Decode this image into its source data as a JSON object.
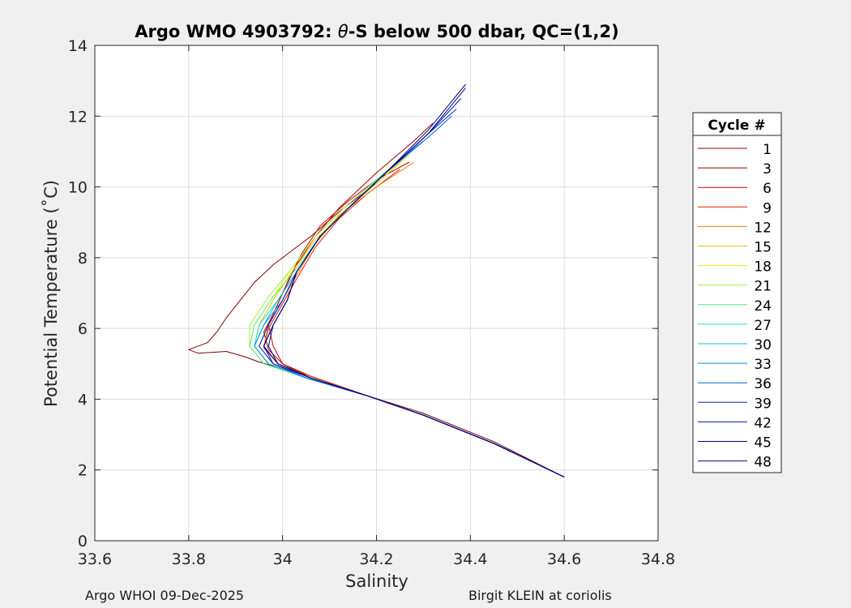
{
  "chart_data": {
    "type": "line",
    "title": {
      "prefix": "Argo WMO 4903792: ",
      "symbol": "θ",
      "suffix": "-S below 500 dbar,  QC=(1,2)"
    },
    "xlabel": "Salinity",
    "ylabel": "Potential Temperature (˚C)",
    "xlim": [
      33.6,
      34.8
    ],
    "ylim": [
      0,
      14
    ],
    "xticks": [
      33.6,
      33.8,
      34,
      34.2,
      34.4,
      34.6,
      34.8
    ],
    "xtick_labels": [
      "33.6",
      "33.8",
      "34",
      "34.2",
      "34.4",
      "34.6",
      "34.8"
    ],
    "yticks": [
      0,
      2,
      4,
      6,
      8,
      10,
      12,
      14
    ],
    "ytick_labels": [
      "0",
      "2",
      "4",
      "6",
      "8",
      "10",
      "12",
      "14"
    ],
    "grid": true,
    "legend": {
      "title": "Cycle #",
      "placement": "outside-right",
      "entries": [
        {
          "label": "1",
          "color": "#800000"
        },
        {
          "label": "3",
          "color": "#a00000"
        },
        {
          "label": "6",
          "color": "#c80000"
        },
        {
          "label": "9",
          "color": "#e02000"
        },
        {
          "label": "12",
          "color": "#f08000"
        },
        {
          "label": "15",
          "color": "#e0c000"
        },
        {
          "label": "18",
          "color": "#f0f000"
        },
        {
          "label": "21",
          "color": "#a0f040"
        },
        {
          "label": "24",
          "color": "#50f080"
        },
        {
          "label": "27",
          "color": "#20e0c0"
        },
        {
          "label": "30",
          "color": "#00c0e0"
        },
        {
          "label": "33",
          "color": "#0090e0"
        },
        {
          "label": "36",
          "color": "#0060d0"
        },
        {
          "label": "39",
          "color": "#0030c0"
        },
        {
          "label": "42",
          "color": "#0010b0"
        },
        {
          "label": "45",
          "color": "#000090"
        },
        {
          "label": "48",
          "color": "#000080"
        }
      ]
    },
    "series": [
      {
        "name": "1",
        "color": "#800000",
        "x": [
          34.6,
          34.45,
          34.3,
          34.18,
          34.05,
          33.99,
          33.95,
          33.92,
          33.88,
          33.82,
          33.8,
          33.84,
          33.86,
          33.88,
          33.91,
          33.94,
          33.98,
          34.02,
          34.06,
          34.12,
          34.2
        ],
        "y": [
          1.8,
          2.8,
          3.6,
          4.1,
          4.6,
          4.9,
          5.05,
          5.2,
          5.35,
          5.3,
          5.4,
          5.6,
          5.9,
          6.3,
          6.8,
          7.3,
          7.8,
          8.2,
          8.6,
          9.3,
          10.1
        ]
      },
      {
        "name": "3",
        "color": "#a00000",
        "x": [
          34.6,
          34.45,
          34.3,
          34.18,
          34.06,
          34.0,
          33.97,
          33.96,
          33.98,
          34.0,
          34.03,
          34.07,
          34.12,
          34.2,
          34.28,
          34.32
        ],
        "y": [
          1.8,
          2.75,
          3.55,
          4.1,
          4.65,
          5.0,
          5.4,
          5.9,
          6.4,
          7.0,
          7.8,
          8.6,
          9.4,
          10.4,
          11.3,
          11.8
        ]
      },
      {
        "name": "6",
        "color": "#c80000",
        "x": [
          34.6,
          34.45,
          34.3,
          34.18,
          34.06,
          34.0,
          33.98,
          33.97,
          33.99,
          34.01,
          34.04,
          34.08,
          34.14,
          34.2,
          34.27
        ],
        "y": [
          1.8,
          2.75,
          3.55,
          4.1,
          4.6,
          5.0,
          5.5,
          6.1,
          6.7,
          7.3,
          8.1,
          8.9,
          9.6,
          10.2,
          10.7
        ]
      },
      {
        "name": "9",
        "color": "#e02000",
        "x": [
          34.6,
          34.45,
          34.3,
          34.18,
          34.06,
          33.99,
          33.96,
          33.97,
          34.0,
          34.03,
          34.07,
          34.12,
          34.18,
          34.25
        ],
        "y": [
          1.8,
          2.75,
          3.55,
          4.1,
          4.65,
          5.0,
          5.45,
          6.0,
          6.7,
          7.4,
          8.3,
          9.1,
          9.8,
          10.5
        ]
      },
      {
        "name": "12",
        "color": "#f08000",
        "x": [
          34.6,
          34.45,
          34.3,
          34.18,
          34.06,
          33.99,
          33.96,
          33.97,
          34.0,
          34.03,
          34.07,
          34.12,
          34.2,
          34.28
        ],
        "y": [
          1.8,
          2.75,
          3.55,
          4.1,
          4.6,
          5.0,
          5.5,
          6.1,
          6.8,
          7.5,
          8.4,
          9.2,
          10.0,
          10.7
        ]
      },
      {
        "name": "15",
        "color": "#e0c000",
        "x": [
          34.6,
          34.45,
          34.3,
          34.18,
          34.05,
          33.97,
          33.94,
          33.95,
          33.98,
          34.02,
          34.07,
          34.13,
          34.2,
          34.26
        ],
        "y": [
          1.8,
          2.75,
          3.55,
          4.1,
          4.6,
          5.0,
          5.5,
          6.1,
          6.8,
          7.6,
          8.5,
          9.3,
          10.1,
          10.8
        ]
      },
      {
        "name": "18",
        "color": "#f0f000",
        "x": [
          34.6,
          34.45,
          34.3,
          34.18,
          34.05,
          33.96,
          33.93,
          33.94,
          33.98,
          34.02,
          34.07,
          34.13,
          34.2,
          34.27
        ],
        "y": [
          1.8,
          2.75,
          3.55,
          4.1,
          4.6,
          5.0,
          5.5,
          6.1,
          6.9,
          7.7,
          8.6,
          9.4,
          10.2,
          10.9
        ]
      },
      {
        "name": "21",
        "color": "#a0f040",
        "x": [
          34.6,
          34.45,
          34.3,
          34.18,
          34.05,
          33.96,
          33.93,
          33.93,
          33.97,
          34.02,
          34.07,
          34.13,
          34.2,
          34.26
        ],
        "y": [
          1.8,
          2.75,
          3.55,
          4.1,
          4.6,
          5.0,
          5.5,
          6.1,
          6.9,
          7.7,
          8.6,
          9.4,
          10.2,
          10.9
        ]
      },
      {
        "name": "24",
        "color": "#50f080",
        "x": [
          34.6,
          34.45,
          34.3,
          34.18,
          34.05,
          33.96,
          33.93,
          33.94,
          33.98,
          34.03,
          34.08,
          34.14,
          34.21,
          34.27
        ],
        "y": [
          1.8,
          2.75,
          3.55,
          4.1,
          4.6,
          5.0,
          5.5,
          6.1,
          6.9,
          7.7,
          8.6,
          9.4,
          10.3,
          11.0
        ]
      },
      {
        "name": "27",
        "color": "#20e0c0",
        "x": [
          34.6,
          34.45,
          34.3,
          34.18,
          34.05,
          33.97,
          33.94,
          33.95,
          33.99,
          34.03,
          34.08,
          34.14,
          34.21,
          34.28
        ],
        "y": [
          1.8,
          2.75,
          3.55,
          4.1,
          4.6,
          5.0,
          5.5,
          6.1,
          6.8,
          7.6,
          8.6,
          9.4,
          10.3,
          11.1
        ]
      },
      {
        "name": "30",
        "color": "#00c0e0",
        "x": [
          34.6,
          34.45,
          34.3,
          34.18,
          34.05,
          33.97,
          33.94,
          33.96,
          33.99,
          34.03,
          34.08,
          34.14,
          34.21,
          34.29
        ],
        "y": [
          1.8,
          2.75,
          3.55,
          4.1,
          4.6,
          5.0,
          5.5,
          6.1,
          6.8,
          7.6,
          8.6,
          9.4,
          10.3,
          11.2
        ]
      },
      {
        "name": "33",
        "color": "#0090e0",
        "x": [
          34.6,
          34.45,
          34.3,
          34.18,
          34.05,
          33.97,
          33.94,
          33.96,
          34.0,
          34.03,
          34.08,
          34.14,
          34.22,
          34.3
        ],
        "y": [
          1.8,
          2.75,
          3.55,
          4.1,
          4.6,
          5.0,
          5.5,
          6.1,
          6.8,
          7.6,
          8.6,
          9.4,
          10.4,
          11.3
        ]
      },
      {
        "name": "36",
        "color": "#0060d0",
        "x": [
          34.6,
          34.45,
          34.3,
          34.18,
          34.05,
          33.98,
          33.95,
          33.97,
          34.0,
          34.03,
          34.08,
          34.14,
          34.22,
          34.31,
          34.36
        ],
        "y": [
          1.8,
          2.75,
          3.55,
          4.1,
          4.6,
          5.0,
          5.5,
          6.1,
          6.8,
          7.6,
          8.6,
          9.4,
          10.4,
          11.4,
          12.0
        ]
      },
      {
        "name": "39",
        "color": "#0030c0",
        "x": [
          34.6,
          34.45,
          34.3,
          34.18,
          34.06,
          33.98,
          33.95,
          33.97,
          34.0,
          34.03,
          34.08,
          34.14,
          34.22,
          34.31,
          34.37
        ],
        "y": [
          1.8,
          2.75,
          3.55,
          4.1,
          4.6,
          5.0,
          5.5,
          6.1,
          6.8,
          7.6,
          8.6,
          9.4,
          10.4,
          11.5,
          12.2
        ]
      },
      {
        "name": "42",
        "color": "#0010b0",
        "x": [
          34.6,
          34.45,
          34.3,
          34.18,
          34.06,
          33.98,
          33.96,
          33.98,
          34.01,
          34.03,
          34.08,
          34.14,
          34.22,
          34.31,
          34.38
        ],
        "y": [
          1.8,
          2.75,
          3.55,
          4.1,
          4.6,
          5.0,
          5.5,
          6.1,
          6.8,
          7.6,
          8.6,
          9.4,
          10.4,
          11.5,
          12.5
        ]
      },
      {
        "name": "45",
        "color": "#000090",
        "x": [
          34.6,
          34.45,
          34.3,
          34.18,
          34.06,
          33.99,
          33.96,
          33.98,
          34.01,
          34.03,
          34.08,
          34.14,
          34.22,
          34.31,
          34.39
        ],
        "y": [
          1.8,
          2.75,
          3.55,
          4.1,
          4.6,
          5.0,
          5.5,
          6.1,
          6.8,
          7.6,
          8.6,
          9.4,
          10.4,
          11.5,
          12.8
        ]
      },
      {
        "name": "48",
        "color": "#000080",
        "x": [
          34.6,
          34.45,
          34.3,
          34.18,
          34.06,
          33.99,
          33.97,
          33.98,
          34.01,
          34.03,
          34.08,
          34.14,
          34.22,
          34.31,
          34.39
        ],
        "y": [
          1.8,
          2.75,
          3.55,
          4.1,
          4.6,
          5.0,
          5.5,
          6.1,
          6.8,
          7.6,
          8.6,
          9.4,
          10.4,
          11.6,
          12.9
        ]
      }
    ]
  },
  "footer": {
    "left": "Argo WHOI 09-Dec-2025",
    "right": "Birgit KLEIN at coriolis"
  }
}
